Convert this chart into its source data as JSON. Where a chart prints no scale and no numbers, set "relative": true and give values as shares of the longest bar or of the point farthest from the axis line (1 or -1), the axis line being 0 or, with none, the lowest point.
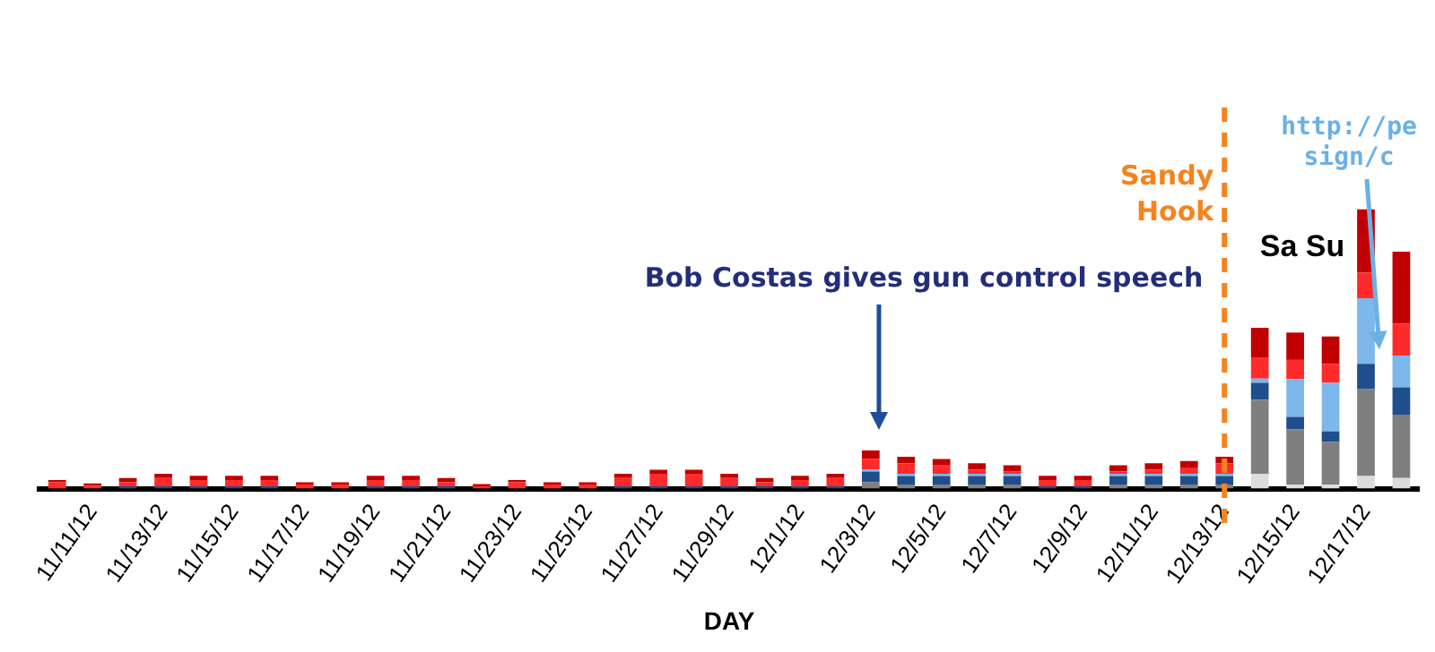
{
  "chart_data": {
    "type": "bar",
    "stacked": true,
    "relative": true,
    "xlabel": "DAY",
    "legend": false,
    "grid": false,
    "categories": [
      null,
      "11/11/12",
      null,
      "11/13/12",
      null,
      "11/15/12",
      null,
      "11/17/12",
      null,
      "11/19/12",
      null,
      "11/21/12",
      null,
      "11/23/12",
      null,
      "11/25/12",
      null,
      "11/27/12",
      null,
      "11/29/12",
      null,
      "12/1/12",
      null,
      "12/3/12",
      null,
      "12/5/12",
      null,
      "12/7/12",
      null,
      "12/9/12",
      null,
      "12/11/12",
      null,
      "12/13/12",
      null,
      "12/15/12",
      null,
      "12/17/12",
      null
    ],
    "series": [
      {
        "color": "#dcdcdc",
        "values": [
          0,
          0,
          0,
          0,
          0,
          0,
          0,
          0,
          0,
          0,
          0,
          0,
          0,
          0,
          0,
          0,
          0,
          0,
          0,
          0,
          0,
          0,
          0,
          0,
          0,
          0,
          0,
          0,
          0,
          0,
          0,
          0,
          0,
          0,
          0.053,
          0.015,
          0.015,
          0.045,
          0.038
        ]
      },
      {
        "color": "#7f7f7f",
        "values": [
          0,
          0,
          0,
          0,
          0,
          0,
          0,
          0,
          0,
          0,
          0,
          0,
          0,
          0,
          0,
          0,
          0,
          0,
          0,
          0,
          0,
          0,
          0,
          0.023,
          0.015,
          0.015,
          0.015,
          0.015,
          0,
          0,
          0.015,
          0.015,
          0.015,
          0.015,
          0.265,
          0.197,
          0.152,
          0.311,
          0.227
        ]
      },
      {
        "color": "#1f4e8c",
        "values": [
          0,
          0,
          0.008,
          0.008,
          0.008,
          0.008,
          0.008,
          0,
          0,
          0.008,
          0.008,
          0.008,
          0,
          0,
          0,
          0,
          0.008,
          0.008,
          0.008,
          0.008,
          0.008,
          0.008,
          0.008,
          0.038,
          0.03,
          0.03,
          0.03,
          0.03,
          0.008,
          0.008,
          0.03,
          0.03,
          0.03,
          0.03,
          0.061,
          0.045,
          0.038,
          0.091,
          0.098
        ]
      },
      {
        "color": "#7cb8ec",
        "values": [
          0,
          0,
          0,
          0,
          0,
          0,
          0,
          0,
          0,
          0,
          0,
          0,
          0,
          0,
          0,
          0,
          0,
          0,
          0,
          0,
          0,
          0,
          0,
          0.008,
          0.008,
          0.008,
          0.008,
          0.008,
          0,
          0,
          0.008,
          0.008,
          0.008,
          0.008,
          0.015,
          0.136,
          0.174,
          0.235,
          0.114
        ]
      },
      {
        "color": "#ff2b2b",
        "values": [
          0.023,
          0.011,
          0.015,
          0.03,
          0.023,
          0.023,
          0.023,
          0.015,
          0.015,
          0.023,
          0.023,
          0.015,
          0.008,
          0.023,
          0.015,
          0.015,
          0.03,
          0.045,
          0.045,
          0.03,
          0.015,
          0.023,
          0.03,
          0.038,
          0.038,
          0.03,
          0.015,
          0.008,
          0.023,
          0.023,
          0.008,
          0.015,
          0.023,
          0.038,
          0.076,
          0.068,
          0.068,
          0.091,
          0.114
        ]
      },
      {
        "color": "#c00000",
        "values": [
          0.008,
          0.008,
          0.015,
          0.015,
          0.015,
          0.015,
          0.015,
          0.008,
          0.008,
          0.015,
          0.015,
          0.015,
          0.008,
          0.008,
          0.008,
          0.008,
          0.015,
          0.015,
          0.015,
          0.015,
          0.015,
          0.015,
          0.015,
          0.03,
          0.023,
          0.023,
          0.023,
          0.023,
          0.015,
          0.015,
          0.023,
          0.023,
          0.023,
          0.023,
          0.106,
          0.098,
          0.098,
          0.227,
          0.258
        ]
      }
    ],
    "ref_lines": [
      {
        "axis": "x",
        "value": "12/13/12",
        "label": "Sandy\nHook",
        "color": "#f5841f",
        "line_style": "dashed"
      }
    ],
    "annotations": [
      "Bob Costas gives gun control speech",
      "Sa Su",
      "http://pe\nsign/c"
    ]
  }
}
